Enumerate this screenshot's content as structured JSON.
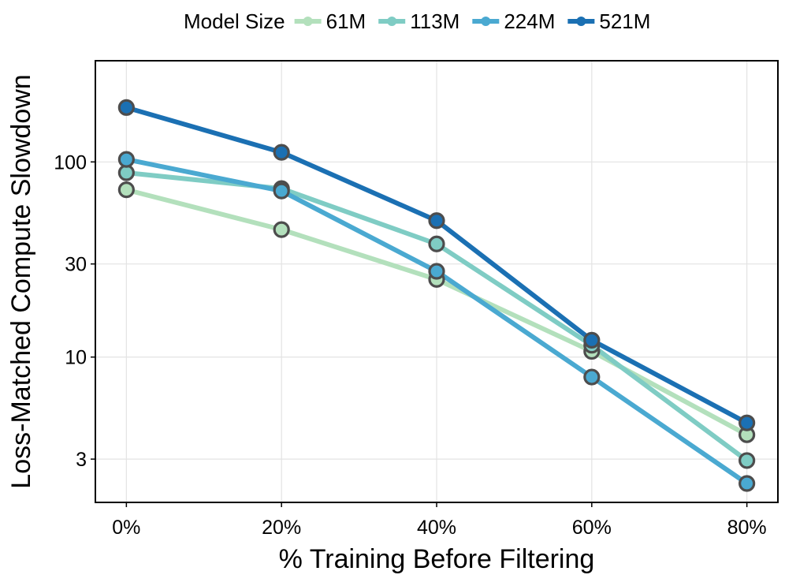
{
  "chart_data": {
    "type": "line",
    "title": "",
    "xlabel": "% Training Before Filtering",
    "ylabel": "Loss-Matched Compute Slowdown",
    "x": [
      0,
      20,
      40,
      60,
      80
    ],
    "x_tick_labels": [
      "0%",
      "20%",
      "40%",
      "60%",
      "80%"
    ],
    "xlim": [
      -4,
      84
    ],
    "yscale": "log",
    "ylim": [
      1.8,
      330
    ],
    "y_ticks": [
      3,
      10,
      30,
      100
    ],
    "y_tick_labels": [
      "3",
      "10",
      "30",
      "100"
    ],
    "grid": true,
    "legend": {
      "title": "Model Size",
      "placement": "top"
    },
    "series": [
      {
        "name": "61M",
        "color": "#b3e0bc",
        "values": [
          72,
          45,
          25,
          10.7,
          4.0
        ]
      },
      {
        "name": "113M",
        "color": "#7fccc4",
        "values": [
          88,
          73,
          38,
          11.5,
          2.95
        ]
      },
      {
        "name": "224M",
        "color": "#4aa9d1",
        "values": [
          103,
          71,
          27.5,
          7.9,
          2.25
        ]
      },
      {
        "name": "521M",
        "color": "#1b70b3",
        "values": [
          190,
          112,
          50,
          12.2,
          4.6
        ]
      }
    ],
    "marker_edge_color": "#4d4d4d"
  }
}
